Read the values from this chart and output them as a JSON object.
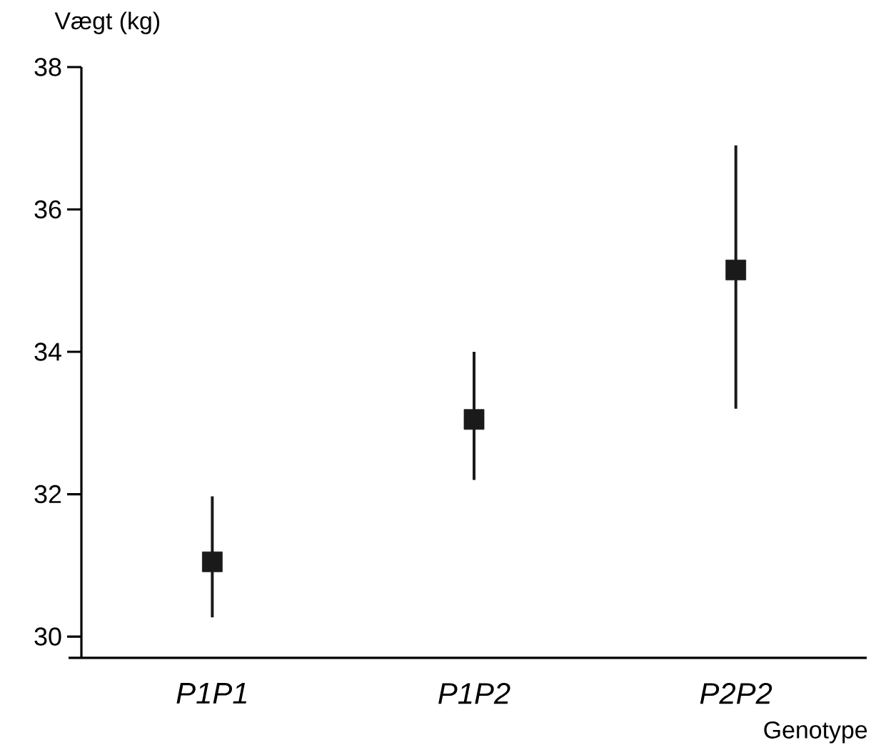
{
  "chart_data": {
    "type": "scatter",
    "ylabel": "Vægt (kg)",
    "xlabel": "Genotype",
    "categories": [
      "P1P1",
      "P1P2",
      "P2P2"
    ],
    "values": [
      31.05,
      33.05,
      35.15
    ],
    "errors": [
      [
        30.27,
        31.97
      ],
      [
        32.2,
        34.0
      ],
      [
        33.2,
        36.9
      ]
    ],
    "color": "#1a1a1a",
    "marker": "square",
    "ylim": [
      29.7,
      38
    ],
    "yticks": [
      30,
      32,
      34,
      36,
      38
    ]
  }
}
